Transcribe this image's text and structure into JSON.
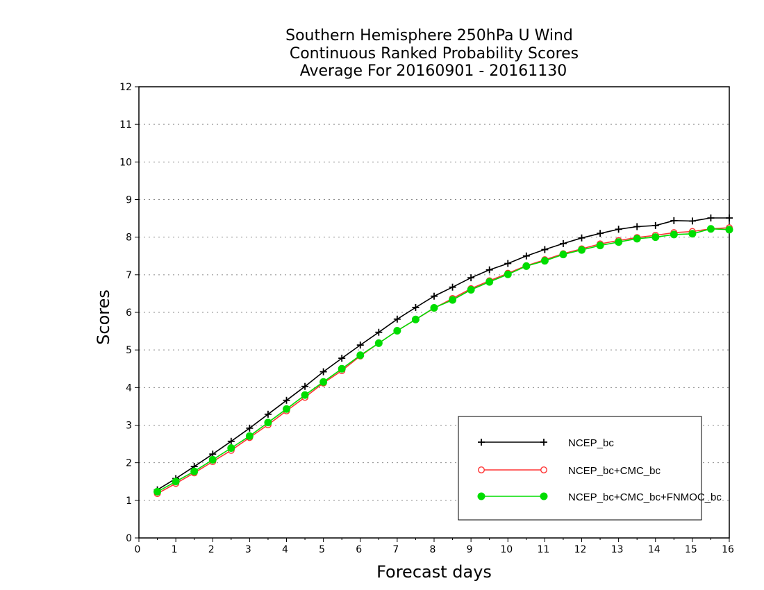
{
  "chart_data": {
    "type": "line",
    "title_lines": [
      "Southern Hemisphere 250hPa U Wind",
      "Continuous Ranked Probability Scores",
      "Average For 20160901 - 20161130"
    ],
    "xlabel": "Forecast days",
    "ylabel": "Scores",
    "xlim": [
      0,
      16
    ],
    "ylim": [
      0,
      12
    ],
    "xticks": [
      "0",
      "1",
      "2",
      "3",
      "4",
      "5",
      "6",
      "7",
      "8",
      "9",
      "10",
      "11",
      "12",
      "13",
      "14",
      "15",
      "16"
    ],
    "yticks": [
      "0",
      "1",
      "2",
      "3",
      "4",
      "5",
      "6",
      "7",
      "8",
      "9",
      "10",
      "11",
      "12"
    ],
    "grid": "horizontal dotted",
    "legend_position": "bottom-right",
    "x": [
      0.5,
      1,
      1.5,
      2,
      2.5,
      3,
      3.5,
      4,
      4.5,
      5,
      5.5,
      6,
      6.5,
      7,
      7.5,
      8,
      8.5,
      9,
      9.5,
      10,
      10.5,
      11,
      11.5,
      12,
      12.5,
      13,
      13.5,
      14,
      14.5,
      15,
      15.5,
      16
    ],
    "series": [
      {
        "name": "NCEP_bc",
        "color": "#000000",
        "marker": "plus",
        "values": [
          1.28,
          1.58,
          1.9,
          2.23,
          2.57,
          2.92,
          3.29,
          3.66,
          4.03,
          4.42,
          4.78,
          5.13,
          5.47,
          5.82,
          6.13,
          6.43,
          6.67,
          6.92,
          7.13,
          7.3,
          7.5,
          7.67,
          7.83,
          7.98,
          8.1,
          8.21,
          8.28,
          8.31,
          8.44,
          8.43,
          8.51,
          8.51
        ]
      },
      {
        "name": "NCEP_bc+CMC_bc",
        "color": "#ff3333",
        "marker": "open-circle",
        "values": [
          1.18,
          1.45,
          1.73,
          2.03,
          2.33,
          2.67,
          3.01,
          3.38,
          3.74,
          4.12,
          4.45,
          4.84,
          5.18,
          5.51,
          5.81,
          6.11,
          6.37,
          6.63,
          6.84,
          7.04,
          7.24,
          7.4,
          7.56,
          7.69,
          7.82,
          7.91,
          7.99,
          8.05,
          8.12,
          8.15,
          8.22,
          8.25
        ]
      },
      {
        "name": "NCEP_bc+CMC_bc+FNMOC_bc",
        "color": "#00dd00",
        "marker": "filled-circle",
        "values": [
          1.23,
          1.5,
          1.77,
          2.08,
          2.39,
          2.71,
          3.07,
          3.43,
          3.8,
          4.15,
          4.5,
          4.86,
          5.18,
          5.51,
          5.81,
          6.12,
          6.33,
          6.6,
          6.81,
          7.01,
          7.23,
          7.37,
          7.54,
          7.66,
          7.78,
          7.87,
          7.96,
          8.0,
          8.07,
          8.09,
          8.22,
          8.2
        ]
      }
    ]
  }
}
